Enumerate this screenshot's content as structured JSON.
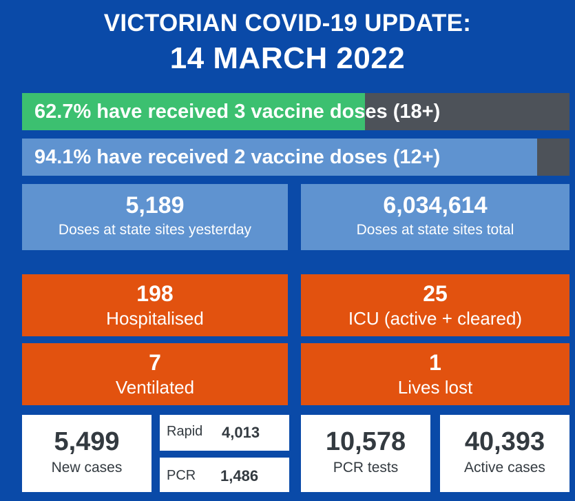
{
  "header": {
    "line1": "VICTORIAN COVID-19 UPDATE:",
    "line2": "14 MARCH 2022"
  },
  "vaccine_bars": [
    {
      "text": "62.7% have received 3 vaccine doses (18+)",
      "progress": 0.627,
      "fill_color": "#3cc070"
    },
    {
      "text": "94.1% have received 2 vaccine doses (12+)",
      "progress": 0.941,
      "fill_color": "#5f93d0"
    }
  ],
  "doses": {
    "yesterday": {
      "value": "5,189",
      "label": "Doses at state sites yesterday"
    },
    "total": {
      "value": "6,034,614",
      "label": "Doses at state sites total"
    }
  },
  "hospital": {
    "hospitalised": {
      "value": "198",
      "label": "Hospitalised"
    },
    "icu": {
      "value": "25",
      "label": "ICU (active + cleared)"
    },
    "ventilated": {
      "value": "7",
      "label": "Ventilated"
    },
    "lives_lost": {
      "value": "1",
      "label": "Lives lost"
    }
  },
  "cases": {
    "new_cases": {
      "value": "5,499",
      "label": "New cases"
    },
    "rapid": {
      "label": "Rapid",
      "value": "4,013"
    },
    "pcr": {
      "label": "PCR",
      "value": "1,486"
    },
    "pcr_tests": {
      "value": "10,578",
      "label": "PCR tests"
    },
    "active_cases": {
      "value": "40,393",
      "label": "Active cases"
    }
  },
  "colors": {
    "background": "#0a4aa8",
    "light_blue": "#5f93d0",
    "green": "#3cc070",
    "orange": "#e2520f",
    "dark_grey": "#4d5259"
  }
}
